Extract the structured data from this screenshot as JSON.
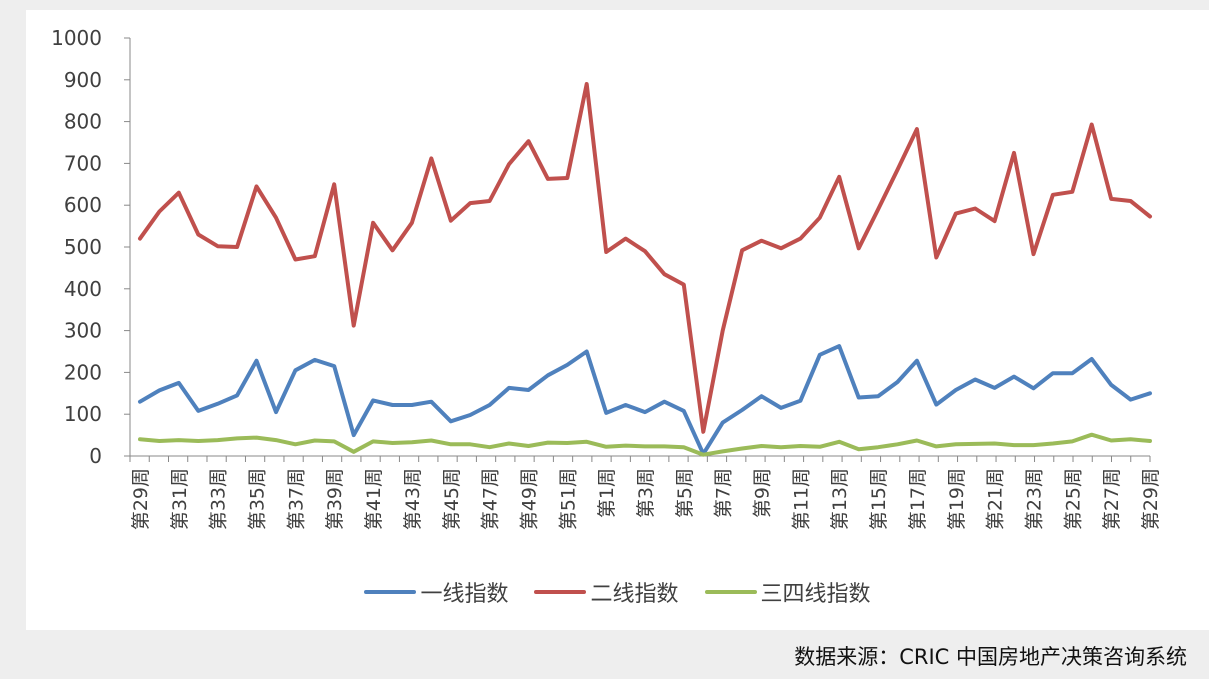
{
  "source_text": "数据来源：CRIC 中国房地产决策咨询系统",
  "chart_data": {
    "type": "line",
    "title": "",
    "xlabel": "",
    "ylabel": "",
    "ylim": [
      0,
      1000
    ],
    "yticks": [
      0,
      100,
      200,
      300,
      400,
      500,
      600,
      700,
      800,
      900,
      1000
    ],
    "grid": false,
    "legend_position": "bottom",
    "x": [
      "第29周",
      "第30周",
      "第31周",
      "第32周",
      "第33周",
      "第34周",
      "第35周",
      "第36周",
      "第37周",
      "第38周",
      "第39周",
      "第40周",
      "第41周",
      "第42周",
      "第43周",
      "第44周",
      "第45周",
      "第46周",
      "第47周",
      "第48周",
      "第49周",
      "第50周",
      "第51周",
      "第52周",
      "第1周",
      "第2周",
      "第3周",
      "第4周",
      "第5周",
      "第6周",
      "第7周",
      "第8周",
      "第9周",
      "第10周",
      "第11周",
      "第12周",
      "第13周",
      "第14周",
      "第15周",
      "第16周",
      "第17周",
      "第18周",
      "第19周",
      "第20周",
      "第21周",
      "第22周",
      "第23周",
      "第24周",
      "第25周",
      "第26周",
      "第27周",
      "第28周",
      "第29周"
    ],
    "tick_labels": [
      "第29周",
      "第31周",
      "第33周",
      "第35周",
      "第37周",
      "第39周",
      "第41周",
      "第43周",
      "第45周",
      "第47周",
      "第49周",
      "第51周",
      "第1周",
      "第3周",
      "第5周",
      "第7周",
      "第9周",
      "第11周",
      "第13周",
      "第15周",
      "第17周",
      "第19周",
      "第21周",
      "第23周",
      "第25周",
      "第27周",
      "第29周"
    ],
    "series": [
      {
        "name": "一线指数",
        "color": "#4f81bd",
        "values": [
          130,
          157,
          175,
          108,
          125,
          145,
          228,
          105,
          205,
          230,
          215,
          50,
          133,
          122,
          122,
          130,
          83,
          98,
          122,
          163,
          158,
          193,
          218,
          250,
          103,
          122,
          105,
          130,
          108,
          5,
          80,
          110,
          143,
          115,
          132,
          242,
          263,
          140,
          143,
          177,
          228,
          123,
          158,
          183,
          163,
          190,
          162,
          198,
          198,
          232,
          170,
          135,
          150
        ]
      },
      {
        "name": "二线指数",
        "color": "#c0504d",
        "values": [
          520,
          585,
          630,
          530,
          502,
          500,
          645,
          570,
          470,
          478,
          650,
          312,
          558,
          492,
          558,
          712,
          563,
          605,
          610,
          698,
          753,
          663,
          665,
          890,
          488,
          520,
          490,
          435,
          410,
          58,
          300,
          492,
          515,
          497,
          520,
          570,
          668,
          497,
          590,
          685,
          782,
          475,
          580,
          592,
          562,
          725,
          483,
          625,
          632,
          793,
          615,
          610,
          573
        ]
      },
      {
        "name": "三四线指数",
        "color": "#9bbb59",
        "values": [
          40,
          36,
          38,
          36,
          38,
          42,
          44,
          38,
          28,
          37,
          35,
          10,
          35,
          31,
          33,
          37,
          28,
          28,
          21,
          30,
          24,
          32,
          31,
          34,
          22,
          25,
          23,
          23,
          21,
          3,
          11,
          18,
          24,
          21,
          24,
          22,
          34,
          16,
          21,
          28,
          37,
          23,
          28,
          29,
          30,
          26,
          26,
          30,
          35,
          51,
          37,
          40,
          36
        ]
      }
    ]
  }
}
